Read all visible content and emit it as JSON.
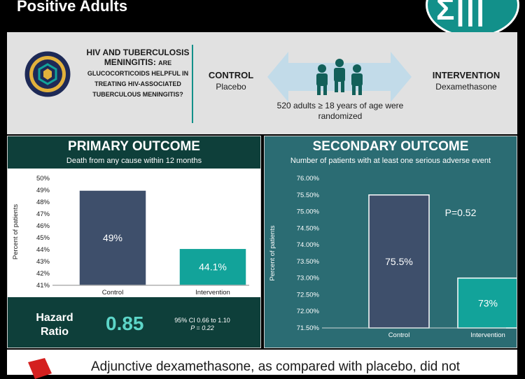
{
  "header": {
    "title": "Positive Adults",
    "logo": "NEJM Evidence"
  },
  "study": {
    "hiv_title": "HIV AND TUBERCULOSIS MENINGITIS:",
    "hiv_question": "ARE GLUCOCORTICOIDS HELPFUL IN TREATING HIV-ASSOCIATED TUBERCULOUS MENINGITIS?",
    "control_label": "CONTROL",
    "control_sub": "Placebo",
    "intervention_label": "INTERVENTION",
    "intervention_sub": "Dexamethasone",
    "randomized": "520 adults ≥ 18 years of age were randomized"
  },
  "primary": {
    "title": "PRIMARY OUTCOME",
    "subtitle": "Death from any cause within 12 months",
    "hr_label": "Hazard Ratio",
    "hr_value": "0.85",
    "ci": "95% CI 0.66 to 1.10",
    "p": "P = 0.22"
  },
  "secondary": {
    "title": "SECONDARY OUTCOME",
    "subtitle": "Number of patients with at least one serious adverse event",
    "pvalue": "P=0.52"
  },
  "conclusion": "Adjunctive dexamethasone, as compared with placebo, did not",
  "colors": {
    "control": "#3e4f6b",
    "intervention": "#12a39a",
    "panel_left": "#0e3f3a",
    "panel_right": "#2b6c73"
  },
  "chart_data": [
    {
      "type": "bar",
      "title": "PRIMARY OUTCOME",
      "subtitle": "Death from any cause within 12 months",
      "categories": [
        "Control",
        "Intervention"
      ],
      "values": [
        49,
        44.1
      ],
      "labels": [
        "49%",
        "44.1%"
      ],
      "ylabel": "Percent of patients",
      "ylim": [
        41,
        50
      ],
      "yticks": [
        "41%",
        "42%",
        "43%",
        "44%",
        "45%",
        "46%",
        "47%",
        "48%",
        "49%",
        "50%"
      ]
    },
    {
      "type": "bar",
      "title": "SECONDARY OUTCOME",
      "subtitle": "Number of patients with at least one serious adverse event",
      "categories": [
        "Control",
        "Intervention"
      ],
      "values": [
        75.5,
        73
      ],
      "labels": [
        "75.5%",
        "73%"
      ],
      "ylabel": "Percent of patients",
      "ylim": [
        71.5,
        76
      ],
      "yticks": [
        "71.50%",
        "72.00%",
        "72.50%",
        "73.00%",
        "73.50%",
        "74.00%",
        "74.50%",
        "75.00%",
        "75.50%",
        "76.00%"
      ]
    }
  ]
}
